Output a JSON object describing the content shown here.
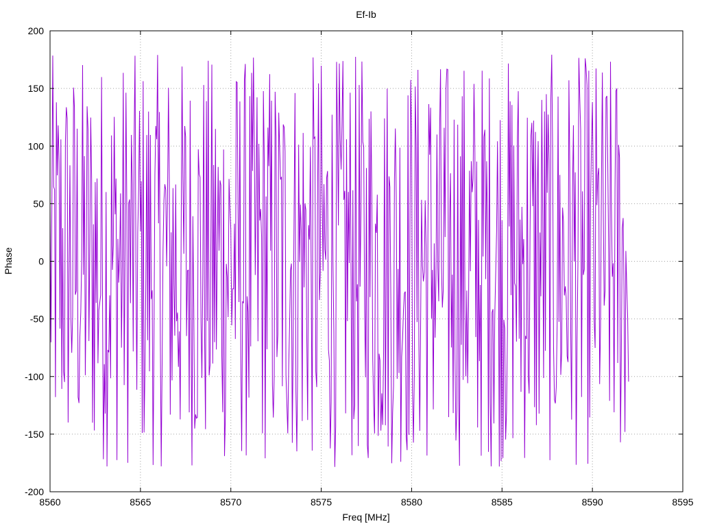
{
  "chart_data": {
    "type": "line",
    "title": "Ef-Ib",
    "xlabel": "Freq [MHz]",
    "ylabel": "Phase",
    "xlim": [
      8560,
      8595
    ],
    "ylim": [
      -200,
      200
    ],
    "xticks": [
      8560,
      8565,
      8570,
      8575,
      8580,
      8585,
      8590,
      8595
    ],
    "yticks": [
      -200,
      -150,
      -100,
      -50,
      0,
      50,
      100,
      150,
      200
    ],
    "grid": true,
    "legend": "none",
    "series": [
      {
        "color": "#9400d3",
        "description": "dense noisy phase samples wrapping across full range",
        "x_range": [
          8560,
          8592
        ],
        "y_range": [
          -180,
          180
        ],
        "sample_step": 0.05,
        "peak_envelope": [
          178,
          -181
        ]
      }
    ]
  }
}
